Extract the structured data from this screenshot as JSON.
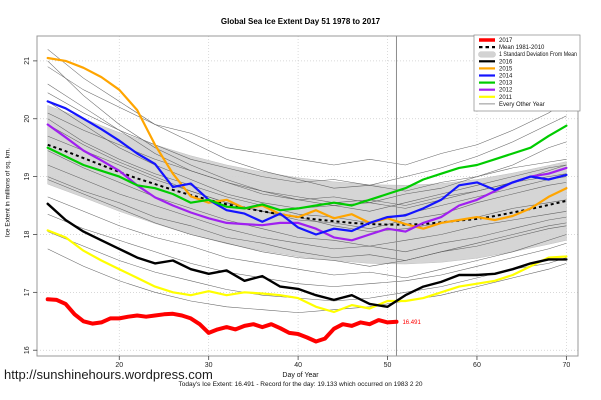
{
  "title": "Global Sea Ice Extent Day 51 1978 to 2017",
  "footer_url": "http://sunshinehours.wordpress.com",
  "footer_note": "Today's Ice Extent: 16.491  - Record for the day: 19.133 which occurred on 1983 2 20",
  "today": {
    "day": 51,
    "ice_extent": "16.491",
    "record": "19.133",
    "record_date": "1983 2 20"
  },
  "chart_data": {
    "type": "line",
    "title": "Global Sea Ice Extent Day 51 1978 to 2017",
    "xlabel": "Day of Year",
    "ylabel": "Ice Extent in millions of sq. km.",
    "xlim": [
      10.8,
      71.3
    ],
    "ylim": [
      15.9,
      21.43
    ],
    "xticks": [
      20,
      30,
      40,
      50,
      60,
      70
    ],
    "yticks": [
      16,
      17,
      18,
      19,
      20,
      21
    ],
    "grid": "dotted",
    "grid_color": "#cccccc",
    "border_color": "#999999",
    "marker_line": {
      "day": 51,
      "color": "#8c8c8c"
    },
    "annotation": {
      "text": "16.491",
      "day": 51,
      "value": 16.491,
      "color": "#ff0000"
    },
    "band": {
      "name": "1 Standard Deviation From Mean",
      "color": "#d3d3d3",
      "days": [
        12,
        16,
        20,
        24,
        28,
        32,
        36,
        40,
        44,
        48,
        52,
        56,
        60,
        64,
        68,
        70
      ],
      "upper": [
        20.23,
        20.0,
        19.76,
        19.55,
        19.36,
        19.2,
        19.08,
        18.98,
        18.91,
        18.86,
        18.85,
        18.88,
        18.95,
        19.06,
        19.19,
        19.26
      ],
      "lower": [
        18.87,
        18.64,
        18.4,
        18.19,
        18.0,
        17.84,
        17.72,
        17.62,
        17.55,
        17.5,
        17.49,
        17.52,
        17.59,
        17.7,
        17.83,
        17.9
      ]
    },
    "mean": {
      "name": "Mean 1981-2010",
      "color": "#000000",
      "days": [
        12,
        14,
        16,
        18,
        20,
        22,
        24,
        26,
        28,
        30,
        32,
        34,
        36,
        38,
        40,
        42,
        44,
        46,
        48,
        50,
        52,
        54,
        56,
        58,
        60,
        62,
        64,
        66,
        68,
        70
      ],
      "values": [
        19.55,
        19.44,
        19.32,
        19.2,
        19.08,
        18.97,
        18.87,
        18.77,
        18.68,
        18.6,
        18.52,
        18.46,
        18.4,
        18.35,
        18.3,
        18.26,
        18.23,
        18.2,
        18.18,
        18.17,
        18.17,
        18.18,
        18.21,
        18.24,
        18.27,
        18.32,
        18.38,
        18.44,
        18.51,
        18.58
      ]
    },
    "series": [
      {
        "name": "2015",
        "color": "#ffa500",
        "width": 2.2,
        "days": [
          12,
          14,
          16,
          18,
          20,
          22,
          24,
          26,
          28,
          30,
          32,
          34,
          36,
          38,
          40,
          42,
          44,
          46,
          48,
          50,
          52,
          54,
          56,
          58,
          60,
          62,
          64,
          66,
          68,
          70
        ],
        "values": [
          21.05,
          21.0,
          20.88,
          20.72,
          20.5,
          20.15,
          19.55,
          19.05,
          18.66,
          18.55,
          18.6,
          18.45,
          18.5,
          18.35,
          18.3,
          18.42,
          18.28,
          18.35,
          18.2,
          18.28,
          18.18,
          18.1,
          18.2,
          18.25,
          18.3,
          18.25,
          18.32,
          18.45,
          18.65,
          18.8
        ]
      },
      {
        "name": "2012",
        "color": "#a020f0",
        "width": 2.2,
        "days": [
          12,
          14,
          16,
          18,
          20,
          22,
          24,
          26,
          28,
          30,
          32,
          34,
          36,
          38,
          40,
          42,
          44,
          46,
          48,
          50,
          52,
          54,
          56,
          58,
          60,
          62,
          64,
          66,
          68,
          70
        ],
        "values": [
          19.9,
          19.68,
          19.45,
          19.28,
          19.1,
          18.85,
          18.64,
          18.5,
          18.38,
          18.28,
          18.2,
          18.18,
          18.16,
          18.2,
          18.2,
          18.1,
          17.95,
          17.9,
          18.0,
          18.1,
          18.05,
          18.2,
          18.3,
          18.5,
          18.6,
          18.75,
          18.9,
          19.0,
          19.05,
          19.15
        ]
      },
      {
        "name": "2014",
        "color": "#1414ff",
        "width": 2.2,
        "days": [
          12,
          14,
          16,
          18,
          20,
          22,
          24,
          26,
          28,
          30,
          32,
          34,
          36,
          38,
          40,
          42,
          44,
          46,
          48,
          50,
          52,
          54,
          56,
          58,
          60,
          62,
          64,
          66,
          68,
          70
        ],
        "values": [
          20.3,
          20.18,
          20.0,
          19.82,
          19.62,
          19.4,
          19.22,
          18.82,
          18.88,
          18.6,
          18.42,
          18.36,
          18.22,
          18.36,
          18.12,
          18.0,
          18.1,
          18.06,
          18.2,
          18.3,
          18.33,
          18.45,
          18.6,
          18.85,
          18.9,
          18.77,
          18.9,
          19.0,
          18.95,
          19.03
        ]
      },
      {
        "name": "2013",
        "color": "#00cc00",
        "width": 2.2,
        "days": [
          12,
          14,
          16,
          18,
          20,
          22,
          24,
          26,
          28,
          30,
          32,
          34,
          36,
          38,
          40,
          42,
          44,
          46,
          48,
          50,
          52,
          54,
          56,
          58,
          60,
          62,
          64,
          66,
          68,
          70
        ],
        "values": [
          19.5,
          19.35,
          19.2,
          19.1,
          19.0,
          18.85,
          18.8,
          18.7,
          18.55,
          18.6,
          18.48,
          18.45,
          18.52,
          18.42,
          18.45,
          18.5,
          18.55,
          18.5,
          18.6,
          18.7,
          18.8,
          18.95,
          19.05,
          19.15,
          19.2,
          19.3,
          19.4,
          19.5,
          19.7,
          19.88
        ]
      },
      {
        "name": "2011",
        "color": "#ffff00",
        "width": 2.2,
        "days": [
          12,
          14,
          16,
          18,
          20,
          22,
          24,
          26,
          28,
          30,
          32,
          34,
          36,
          38,
          40,
          42,
          44,
          46,
          48,
          50,
          52,
          54,
          56,
          58,
          60,
          62,
          64,
          66,
          68,
          70
        ],
        "values": [
          18.07,
          17.95,
          17.72,
          17.55,
          17.4,
          17.25,
          17.1,
          17.0,
          16.95,
          17.02,
          16.95,
          17.0,
          16.98,
          16.95,
          16.9,
          16.75,
          16.66,
          16.78,
          16.72,
          16.85,
          16.85,
          16.9,
          17.0,
          17.1,
          17.15,
          17.2,
          17.3,
          17.45,
          17.6,
          17.62
        ]
      },
      {
        "name": "2016",
        "color": "#000000",
        "width": 2.4,
        "days": [
          12,
          14,
          16,
          18,
          20,
          22,
          24,
          26,
          28,
          30,
          32,
          34,
          36,
          38,
          40,
          42,
          44,
          46,
          48,
          50,
          52,
          54,
          56,
          58,
          60,
          62,
          64,
          66,
          68,
          70
        ],
        "values": [
          18.53,
          18.25,
          18.05,
          17.9,
          17.75,
          17.6,
          17.5,
          17.55,
          17.4,
          17.32,
          17.38,
          17.2,
          17.28,
          17.1,
          17.06,
          16.95,
          16.87,
          16.95,
          16.8,
          16.75,
          16.95,
          17.1,
          17.18,
          17.3,
          17.3,
          17.32,
          17.4,
          17.5,
          17.57,
          17.57
        ]
      },
      {
        "name": "2017",
        "color": "#ff0000",
        "width": 4,
        "days": [
          12,
          13,
          14,
          15,
          16,
          17,
          18,
          19,
          20,
          21,
          22,
          23,
          24,
          25,
          26,
          27,
          28,
          29,
          30,
          31,
          32,
          33,
          34,
          35,
          36,
          37,
          38,
          39,
          40,
          41,
          42,
          43,
          44,
          45,
          46,
          47,
          48,
          49,
          50,
          51
        ],
        "values": [
          16.88,
          16.87,
          16.8,
          16.62,
          16.5,
          16.46,
          16.48,
          16.55,
          16.55,
          16.58,
          16.6,
          16.58,
          16.6,
          16.62,
          16.63,
          16.6,
          16.55,
          16.45,
          16.3,
          16.36,
          16.4,
          16.36,
          16.42,
          16.45,
          16.4,
          16.45,
          16.38,
          16.3,
          16.28,
          16.22,
          16.15,
          16.2,
          16.37,
          16.45,
          16.42,
          16.48,
          16.45,
          16.52,
          16.48,
          16.491
        ]
      }
    ],
    "other_years": {
      "name": "Every Other Year",
      "color": "#595959",
      "width": 0.55,
      "days": [
        12,
        16,
        20,
        24,
        28,
        32,
        36,
        40,
        44,
        48,
        52,
        56,
        60,
        64,
        68,
        70
      ],
      "lines": [
        [
          21.2,
          20.7,
          20.3,
          19.9,
          19.6,
          19.3,
          19.1,
          18.95,
          18.8,
          18.85,
          18.75,
          18.9,
          19.0,
          19.15,
          19.25,
          19.3
        ],
        [
          20.9,
          20.5,
          20.2,
          19.9,
          19.75,
          19.5,
          19.4,
          19.3,
          19.2,
          19.3,
          19.2,
          19.4,
          19.55,
          19.8,
          20.1,
          20.3
        ],
        [
          20.6,
          20.2,
          19.8,
          19.4,
          19.1,
          18.9,
          18.7,
          18.6,
          18.65,
          18.55,
          18.7,
          18.8,
          19.0,
          19.2,
          19.5,
          19.6
        ],
        [
          20.45,
          20.1,
          19.8,
          19.55,
          19.3,
          19.15,
          19.0,
          18.9,
          18.95,
          18.85,
          19.0,
          19.15,
          19.35,
          19.6,
          19.9,
          20.05
        ],
        [
          20.3,
          19.9,
          19.5,
          19.2,
          18.95,
          18.7,
          18.55,
          18.45,
          18.5,
          18.4,
          18.55,
          18.7,
          18.85,
          19.0,
          19.15,
          19.2
        ],
        [
          20.1,
          19.8,
          19.55,
          19.3,
          19.1,
          18.9,
          18.75,
          18.6,
          18.5,
          18.55,
          18.45,
          18.6,
          18.75,
          18.9,
          19.0,
          19.05
        ],
        [
          19.9,
          19.55,
          19.25,
          19.0,
          18.75,
          18.55,
          18.4,
          18.25,
          18.2,
          18.1,
          18.25,
          18.35,
          18.55,
          18.7,
          18.85,
          18.9
        ],
        [
          19.7,
          19.45,
          19.2,
          18.95,
          18.75,
          18.55,
          18.4,
          18.3,
          18.15,
          18.05,
          18.1,
          18.2,
          18.3,
          18.45,
          18.55,
          18.6
        ],
        [
          19.45,
          19.15,
          18.9,
          18.65,
          18.45,
          18.25,
          18.1,
          17.95,
          17.9,
          17.8,
          17.9,
          18.0,
          18.15,
          18.25,
          18.35,
          18.4
        ],
        [
          19.2,
          18.95,
          18.7,
          18.5,
          18.3,
          18.1,
          17.95,
          17.85,
          17.75,
          17.8,
          17.7,
          17.85,
          17.95,
          18.1,
          18.25,
          18.3
        ],
        [
          18.95,
          18.7,
          18.45,
          18.2,
          18.0,
          17.85,
          17.7,
          17.6,
          17.55,
          17.45,
          17.55,
          17.7,
          17.85,
          18.0,
          18.15,
          18.2
        ],
        [
          18.65,
          18.4,
          18.15,
          17.95,
          17.8,
          17.6,
          17.5,
          17.4,
          17.3,
          17.35,
          17.25,
          17.4,
          17.55,
          17.7,
          17.9,
          18.0
        ],
        [
          18.35,
          18.1,
          17.9,
          17.7,
          17.5,
          17.35,
          17.25,
          17.15,
          17.1,
          17.15,
          17.2,
          17.3,
          17.45,
          17.6,
          17.75,
          17.85
        ],
        [
          18.05,
          17.8,
          17.55,
          17.35,
          17.2,
          17.05,
          16.95,
          16.9,
          16.85,
          16.9,
          17.0,
          17.1,
          17.25,
          17.4,
          17.5,
          17.6
        ],
        [
          17.75,
          17.45,
          17.2,
          17.0,
          16.85,
          16.75,
          16.7,
          16.65,
          16.7,
          16.75,
          16.85,
          16.95,
          17.1,
          17.25,
          17.4,
          17.5
        ],
        [
          20.0,
          19.6,
          19.3,
          19.05,
          18.85,
          18.65,
          18.5,
          18.35,
          18.3,
          18.2,
          18.35,
          18.5,
          18.65,
          18.8,
          18.95,
          19.0
        ],
        [
          19.0,
          18.75,
          18.55,
          18.3,
          18.15,
          17.95,
          17.85,
          17.7,
          17.6,
          17.65,
          17.55,
          17.7,
          17.8,
          17.95,
          18.1,
          18.15
        ],
        [
          21.0,
          20.4,
          19.9,
          19.5,
          19.2,
          18.95,
          18.75,
          18.65,
          18.55,
          18.6,
          18.5,
          18.65,
          18.75,
          18.9,
          19.1,
          19.2
        ]
      ]
    },
    "legend": {
      "position": "top-right",
      "items": [
        {
          "label": "2017",
          "swatch": "line",
          "color": "#ff0000",
          "width": 3.5
        },
        {
          "label": "Mean 1981-2010",
          "swatch": "dashed",
          "color": "#000000",
          "width": 2.2
        },
        {
          "label": "1 Standard Deviation From Mean",
          "swatch": "band",
          "color": "#d3d3d3",
          "width": 0
        },
        {
          "label": "2016",
          "swatch": "line",
          "color": "#000000",
          "width": 2.2
        },
        {
          "label": "2015",
          "swatch": "line",
          "color": "#ffa500",
          "width": 2.2
        },
        {
          "label": "2014",
          "swatch": "line",
          "color": "#1414ff",
          "width": 2.2
        },
        {
          "label": "2013",
          "swatch": "line",
          "color": "#00cc00",
          "width": 2.2
        },
        {
          "label": "2012",
          "swatch": "line",
          "color": "#a020f0",
          "width": 2.2
        },
        {
          "label": "2011",
          "swatch": "line",
          "color": "#ffff00",
          "width": 2.2
        },
        {
          "label": "Every Other Year",
          "swatch": "line",
          "color": "#777777",
          "width": 0.8
        }
      ]
    }
  }
}
